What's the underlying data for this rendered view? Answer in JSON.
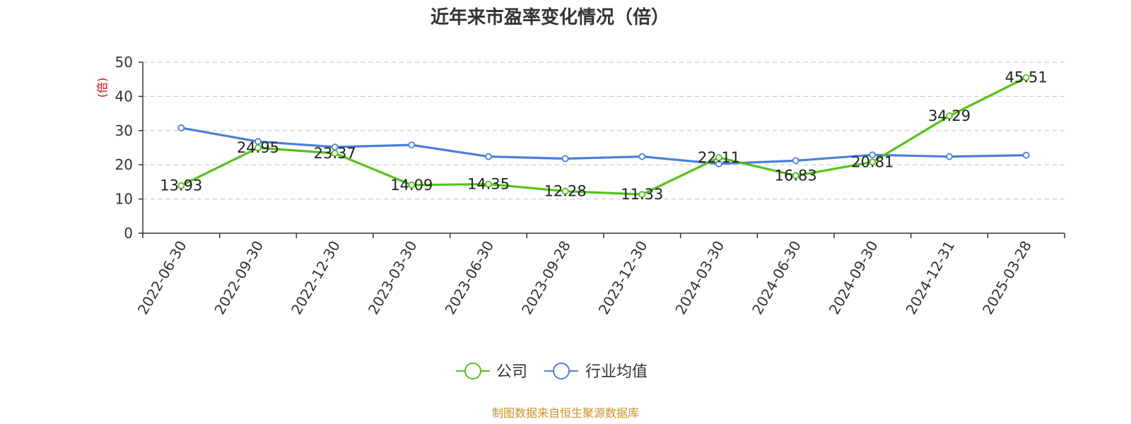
{
  "chart_data": {
    "type": "line",
    "title": "近年来市盈率变化情况（倍）",
    "ylabel": "(倍)",
    "xlabel": "",
    "ylim": [
      0,
      50
    ],
    "yticks": [
      "0",
      "10",
      "20",
      "30",
      "40",
      "50"
    ],
    "categories": [
      "2022-06-30",
      "2022-09-30",
      "2022-12-30",
      "2023-03-30",
      "2023-06-30",
      "2023-09-28",
      "2023-12-30",
      "2024-03-30",
      "2024-06-30",
      "2024-09-30",
      "2024-12-31",
      "2025-03-28"
    ],
    "series": [
      {
        "name": "公司",
        "color": "#52c41a",
        "values": [
          13.93,
          24.95,
          23.37,
          14.09,
          14.35,
          12.28,
          11.33,
          22.11,
          16.83,
          20.81,
          34.29,
          45.51
        ],
        "labels": [
          "13.93",
          "24.95",
          "23.37",
          "14.09",
          "14.35",
          "12.28",
          "11.33",
          "22.11",
          "16.83",
          "20.81",
          "34.29",
          "45.51"
        ]
      },
      {
        "name": "行业均值",
        "color": "#4a7fdc",
        "values": [
          30.8,
          26.8,
          25.2,
          25.8,
          22.4,
          21.8,
          22.4,
          20.3,
          21.2,
          22.9,
          22.4,
          22.8
        ]
      }
    ],
    "grid": "horizontal-dashed",
    "legend_position": "bottom-center"
  },
  "footer": {
    "source": "制图数据来自恒生聚源数据库"
  }
}
